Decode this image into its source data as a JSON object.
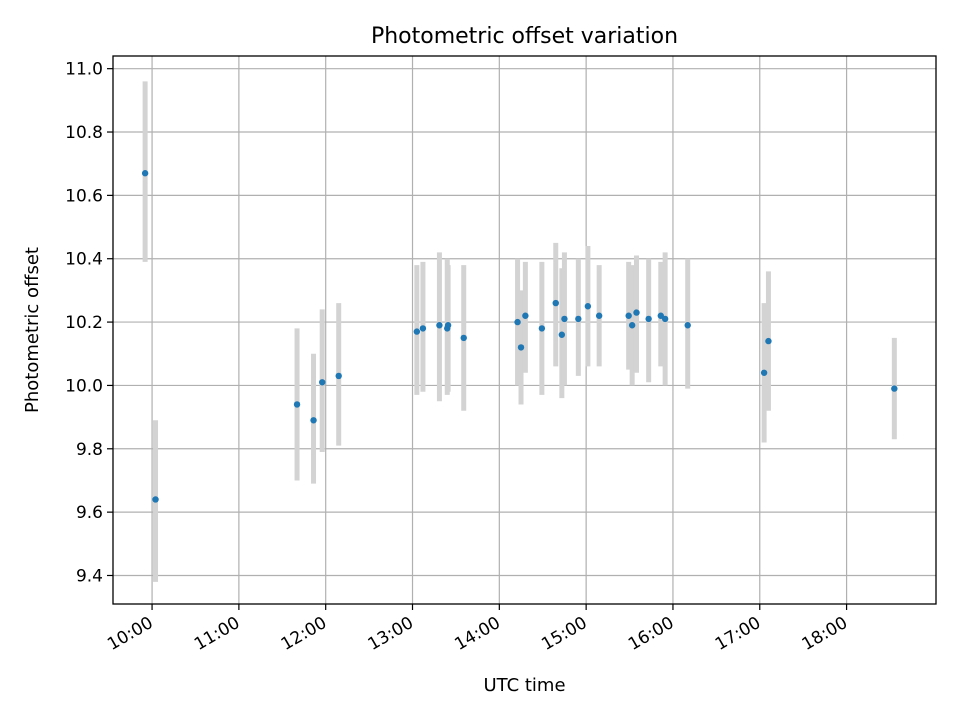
{
  "chart_data": {
    "type": "scatter",
    "title": "Photometric offset variation",
    "xlabel": "UTC time",
    "ylabel": "Photometric offset",
    "x_unit": "hour of day (UTC)",
    "xlim": [
      9.55,
      19.03
    ],
    "ylim": [
      9.31,
      11.04
    ],
    "x_ticks": [
      {
        "value": 10,
        "label": "10:00"
      },
      {
        "value": 11,
        "label": "11:00"
      },
      {
        "value": 12,
        "label": "12:00"
      },
      {
        "value": 13,
        "label": "13:00"
      },
      {
        "value": 14,
        "label": "14:00"
      },
      {
        "value": 15,
        "label": "15:00"
      },
      {
        "value": 16,
        "label": "16:00"
      },
      {
        "value": 17,
        "label": "17:00"
      },
      {
        "value": 18,
        "label": "18:00"
      }
    ],
    "y_ticks": [
      {
        "value": 9.4,
        "label": "9.4"
      },
      {
        "value": 9.6,
        "label": "9.6"
      },
      {
        "value": 9.8,
        "label": "9.8"
      },
      {
        "value": 10.0,
        "label": "10.0"
      },
      {
        "value": 10.2,
        "label": "10.2"
      },
      {
        "value": 10.4,
        "label": "10.4"
      },
      {
        "value": 10.6,
        "label": "10.6"
      },
      {
        "value": 10.8,
        "label": "10.8"
      },
      {
        "value": 11.0,
        "label": "11.0"
      }
    ],
    "grid": true,
    "colors": {
      "marker": "#1f77b4",
      "errorbar": "#d3d3d3",
      "grid": "#b0b0b0"
    },
    "points": [
      {
        "x": 9.92,
        "y": 10.67,
        "ylo": 10.39,
        "yhi": 10.96
      },
      {
        "x": 10.04,
        "y": 9.64,
        "ylo": 9.38,
        "yhi": 9.89
      },
      {
        "x": 11.67,
        "y": 9.94,
        "ylo": 9.7,
        "yhi": 10.18
      },
      {
        "x": 11.86,
        "y": 9.89,
        "ylo": 9.69,
        "yhi": 10.1
      },
      {
        "x": 11.96,
        "y": 10.01,
        "ylo": 9.79,
        "yhi": 10.24
      },
      {
        "x": 12.15,
        "y": 10.03,
        "ylo": 9.81,
        "yhi": 10.26
      },
      {
        "x": 13.05,
        "y": 10.17,
        "ylo": 9.97,
        "yhi": 10.38
      },
      {
        "x": 13.12,
        "y": 10.18,
        "ylo": 9.98,
        "yhi": 10.39
      },
      {
        "x": 13.31,
        "y": 10.19,
        "ylo": 9.95,
        "yhi": 10.42
      },
      {
        "x": 13.4,
        "y": 10.18,
        "ylo": 9.97,
        "yhi": 10.4
      },
      {
        "x": 13.41,
        "y": 10.19,
        "ylo": 9.98,
        "yhi": 10.38
      },
      {
        "x": 13.59,
        "y": 10.15,
        "ylo": 9.92,
        "yhi": 10.38
      },
      {
        "x": 14.21,
        "y": 10.2,
        "ylo": 10.0,
        "yhi": 10.4
      },
      {
        "x": 14.25,
        "y": 10.12,
        "ylo": 9.94,
        "yhi": 10.3
      },
      {
        "x": 14.3,
        "y": 10.22,
        "ylo": 10.04,
        "yhi": 10.39
      },
      {
        "x": 14.49,
        "y": 10.18,
        "ylo": 9.97,
        "yhi": 10.39
      },
      {
        "x": 14.65,
        "y": 10.26,
        "ylo": 10.06,
        "yhi": 10.45
      },
      {
        "x": 14.72,
        "y": 10.16,
        "ylo": 9.96,
        "yhi": 10.37
      },
      {
        "x": 14.75,
        "y": 10.21,
        "ylo": 10.0,
        "yhi": 10.42
      },
      {
        "x": 14.91,
        "y": 10.21,
        "ylo": 10.03,
        "yhi": 10.4
      },
      {
        "x": 15.02,
        "y": 10.25,
        "ylo": 10.06,
        "yhi": 10.44
      },
      {
        "x": 15.15,
        "y": 10.22,
        "ylo": 10.06,
        "yhi": 10.38
      },
      {
        "x": 15.49,
        "y": 10.22,
        "ylo": 10.05,
        "yhi": 10.39
      },
      {
        "x": 15.53,
        "y": 10.19,
        "ylo": 10.0,
        "yhi": 10.38
      },
      {
        "x": 15.58,
        "y": 10.23,
        "ylo": 10.04,
        "yhi": 10.41
      },
      {
        "x": 15.72,
        "y": 10.21,
        "ylo": 10.01,
        "yhi": 10.4
      },
      {
        "x": 15.86,
        "y": 10.22,
        "ylo": 10.06,
        "yhi": 10.39
      },
      {
        "x": 15.91,
        "y": 10.21,
        "ylo": 10.0,
        "yhi": 10.42
      },
      {
        "x": 16.17,
        "y": 10.19,
        "ylo": 9.99,
        "yhi": 10.4
      },
      {
        "x": 17.05,
        "y": 10.04,
        "ylo": 9.82,
        "yhi": 10.26
      },
      {
        "x": 17.1,
        "y": 10.14,
        "ylo": 9.92,
        "yhi": 10.36
      },
      {
        "x": 18.55,
        "y": 9.99,
        "ylo": 9.83,
        "yhi": 10.15
      }
    ]
  }
}
